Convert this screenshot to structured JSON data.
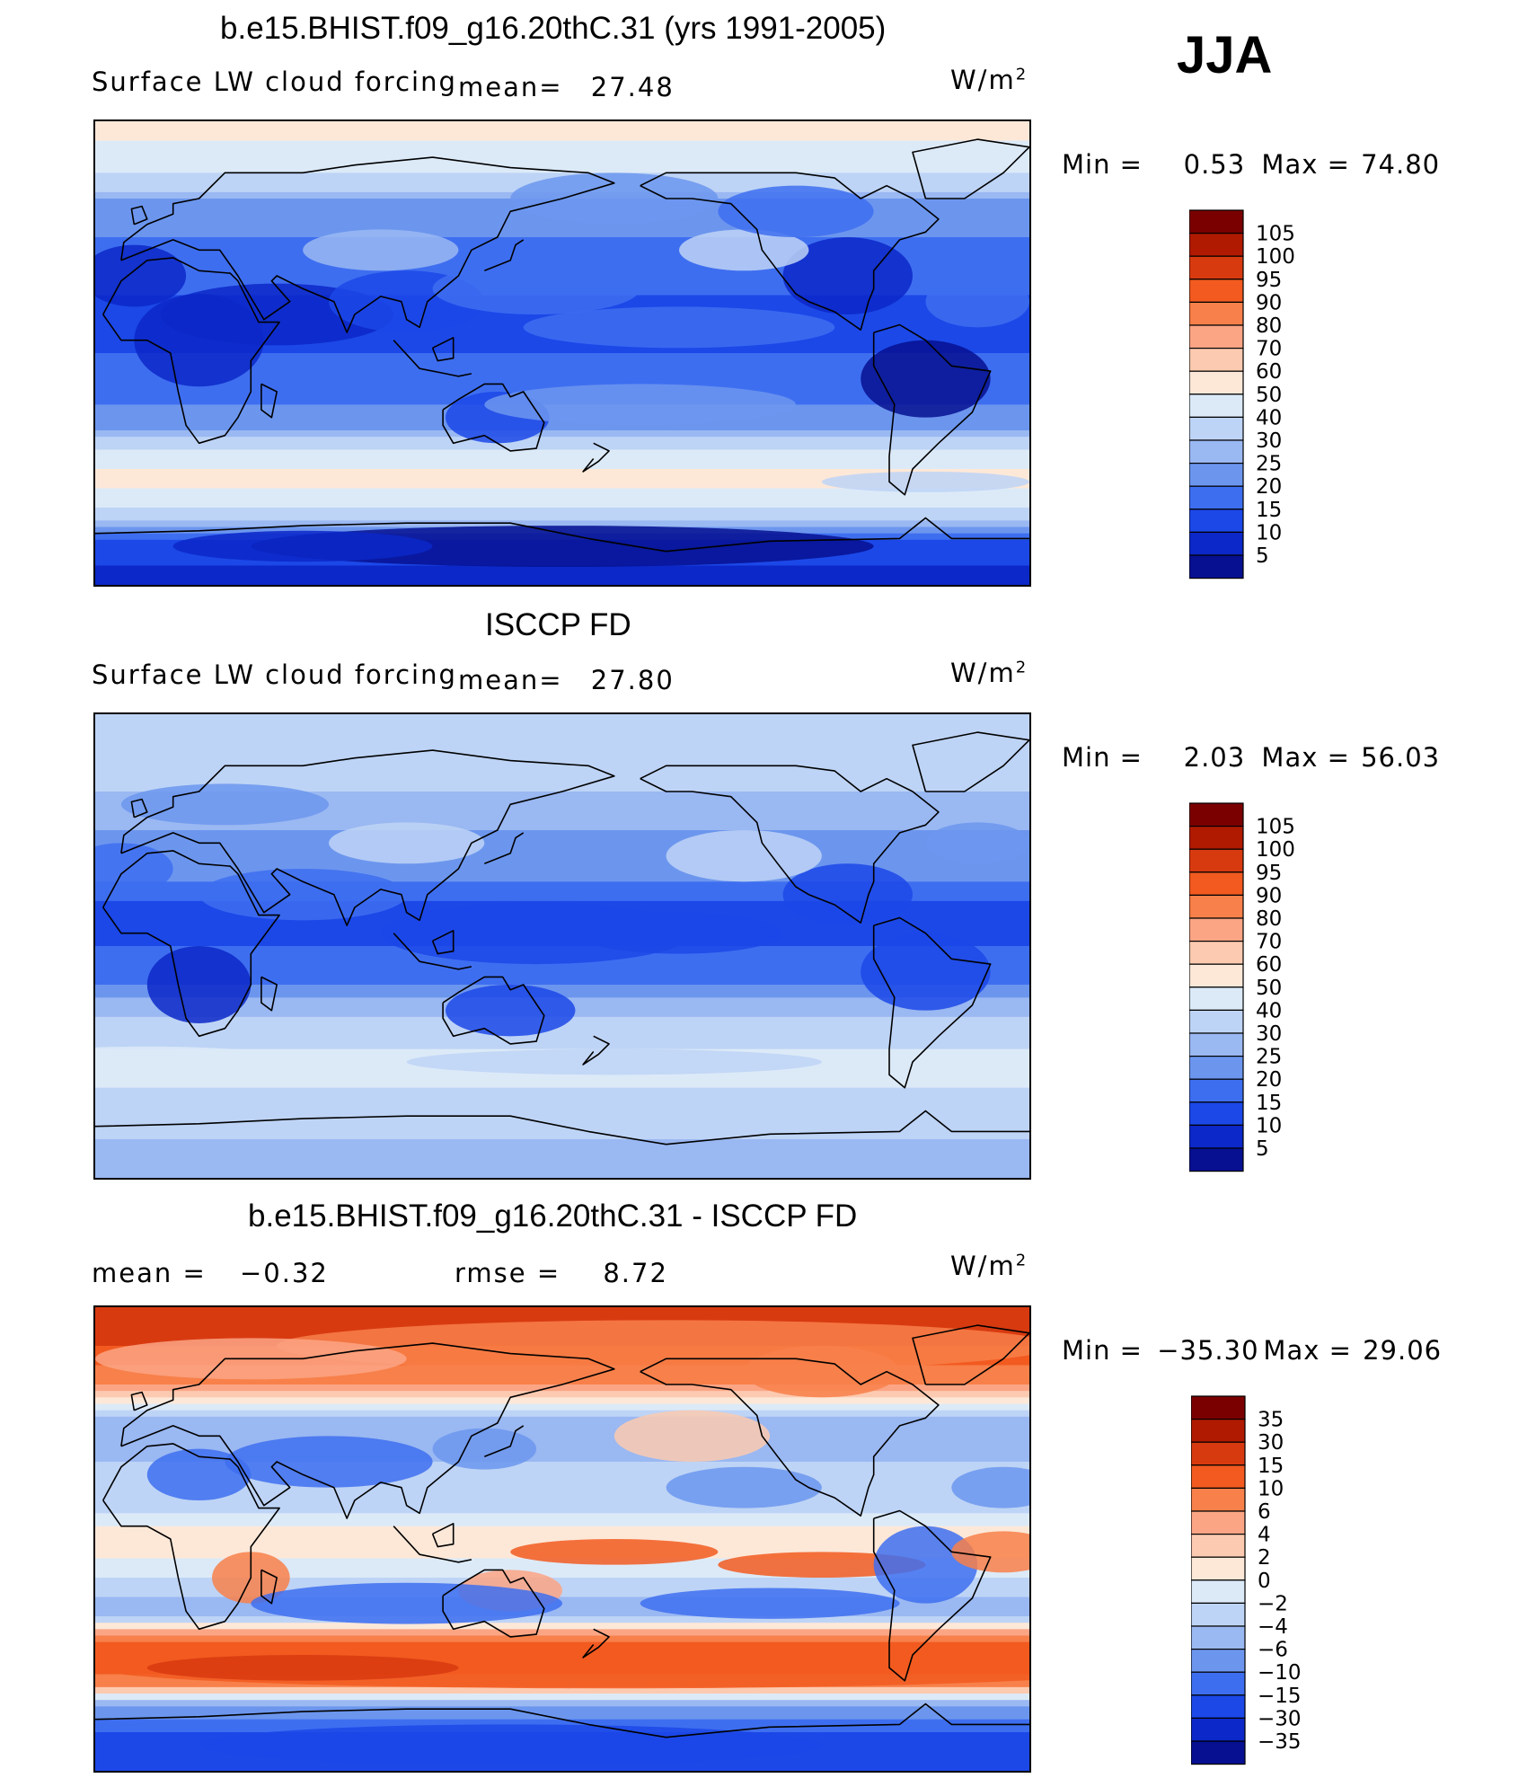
{
  "season": "JJA",
  "units": "W/m",
  "units_sup": "2",
  "panels": [
    {
      "title": "b.e15.BHIST.f09_g16.20thC.31 (yrs 1991-2005)",
      "left_label": "Surface LW cloud forcing",
      "mean_label": "mean=",
      "mean_value": "27.48",
      "min_label": "Min =",
      "min_value": "0.53",
      "max_label": "Max =",
      "max_value": "74.80",
      "colorbar_levels": [
        "105",
        "100",
        "95",
        "90",
        "80",
        "70",
        "60",
        "50",
        "40",
        "30",
        "25",
        "20",
        "15",
        "10",
        "5"
      ]
    },
    {
      "title": "ISCCP FD",
      "left_label": "Surface LW cloud forcing",
      "mean_label": "mean=",
      "mean_value": "27.80",
      "min_label": "Min =",
      "min_value": "2.03",
      "max_label": "Max =",
      "max_value": "56.03",
      "colorbar_levels": [
        "105",
        "100",
        "95",
        "90",
        "80",
        "70",
        "60",
        "50",
        "40",
        "30",
        "25",
        "20",
        "15",
        "10",
        "5"
      ]
    },
    {
      "title": "b.e15.BHIST.f09_g16.20thC.31 - ISCCP FD",
      "mean_label": "mean =",
      "mean_value": "−0.32",
      "rmse_label": "rmse =",
      "rmse_value": "8.72",
      "min_label": "Min =",
      "min_value": "−35.30",
      "max_label": "Max =",
      "max_value": "29.06",
      "colorbar_levels": [
        "35",
        "30",
        "15",
        "10",
        "6",
        "4",
        "2",
        "0",
        "−2",
        "−4",
        "−6",
        "−10",
        "−15",
        "−30",
        "−35"
      ]
    }
  ],
  "colors": {
    "cb": [
      "#7a0000",
      "#b01a00",
      "#d83a10",
      "#f25a20",
      "#f8804a",
      "#fba585",
      "#fccab0",
      "#fde8d8",
      "#dceaf8",
      "#bed4f6",
      "#9ab8f2",
      "#6c96ee",
      "#3e6ef0",
      "#1c48e8",
      "#0c28c8",
      "#061090"
    ],
    "land": "none",
    "coast": "#000000"
  },
  "chart_data": [
    {
      "type": "heatmap",
      "title": "b.e15.BHIST.f09_g16.20thC.31 (yrs 1991-2005)",
      "variable": "Surface LW cloud forcing",
      "units": "W/m2",
      "mean": 27.48,
      "min": 0.53,
      "max": 74.8,
      "levels": [
        5,
        10,
        15,
        20,
        25,
        30,
        40,
        50,
        60,
        70,
        80,
        90,
        95,
        100,
        105
      ],
      "zonal_profile": [
        [
          -90,
          8
        ],
        [
          -75,
          12
        ],
        [
          -65,
          30
        ],
        [
          -50,
          55
        ],
        [
          -40,
          45
        ],
        [
          -30,
          25
        ],
        [
          -15,
          18
        ],
        [
          0,
          15
        ],
        [
          15,
          12
        ],
        [
          30,
          18
        ],
        [
          45,
          20
        ],
        [
          60,
          25
        ],
        [
          75,
          45
        ],
        [
          90,
          55
        ]
      ]
    },
    {
      "type": "heatmap",
      "title": "ISCCP FD",
      "variable": "Surface LW cloud forcing",
      "units": "W/m2",
      "mean": 27.8,
      "min": 2.03,
      "max": 56.03,
      "levels": [
        5,
        10,
        15,
        20,
        25,
        30,
        40,
        50,
        60,
        70,
        80,
        90,
        95,
        100,
        105
      ],
      "zonal_profile": [
        [
          -90,
          28
        ],
        [
          -75,
          30
        ],
        [
          -65,
          35
        ],
        [
          -50,
          42
        ],
        [
          -40,
          40
        ],
        [
          -30,
          32
        ],
        [
          -15,
          20
        ],
        [
          0,
          15
        ],
        [
          15,
          14
        ],
        [
          30,
          22
        ],
        [
          45,
          25
        ],
        [
          60,
          30
        ],
        [
          75,
          35
        ],
        [
          90,
          38
        ]
      ]
    },
    {
      "type": "heatmap",
      "title": "b.e15.BHIST.f09_g16.20thC.31 - ISCCP FD",
      "units": "W/m2",
      "mean": -0.32,
      "rmse": 8.72,
      "min": -35.3,
      "max": 29.06,
      "levels": [
        -35,
        -30,
        -15,
        -10,
        -6,
        -4,
        -2,
        0,
        2,
        4,
        6,
        10,
        15,
        30,
        35
      ],
      "zonal_profile": [
        [
          -90,
          -20
        ],
        [
          -75,
          -15
        ],
        [
          -65,
          -6
        ],
        [
          -50,
          15
        ],
        [
          -40,
          10
        ],
        [
          -30,
          -6
        ],
        [
          -15,
          -2
        ],
        [
          0,
          2
        ],
        [
          15,
          -4
        ],
        [
          30,
          -4
        ],
        [
          45,
          -6
        ],
        [
          60,
          6
        ],
        [
          75,
          15
        ],
        [
          90,
          15
        ]
      ]
    }
  ]
}
